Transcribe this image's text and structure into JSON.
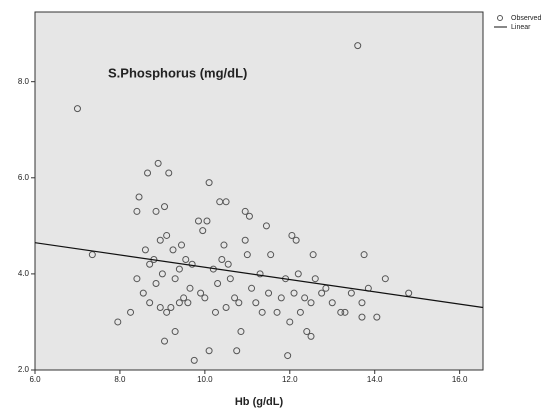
{
  "chart_data": {
    "type": "scatter",
    "annotation": "S.Phosphorus (mg/dL)",
    "x_label": "Hb (g/dL)",
    "xlim": [
      6,
      16.55
    ],
    "ylim": [
      2,
      9.45
    ],
    "xticks": [
      {
        "value": 6,
        "label": "6.0"
      },
      {
        "value": 8,
        "label": "8.0"
      },
      {
        "value": 10,
        "label": "10.0"
      },
      {
        "value": 12,
        "label": "12.0"
      },
      {
        "value": 14,
        "label": "14.0"
      },
      {
        "value": 16,
        "label": "16.0"
      }
    ],
    "yticks": [
      {
        "value": 2,
        "label": "2.0"
      },
      {
        "value": 4,
        "label": "4.0"
      },
      {
        "value": 6,
        "label": "6.0"
      },
      {
        "value": 8,
        "label": "8.0"
      }
    ],
    "series": [
      {
        "name": "Observed",
        "color": "#555555",
        "x": [
          7.0,
          13.6,
          7.35,
          7.95,
          8.25,
          8.4,
          8.4,
          8.45,
          8.55,
          8.6,
          8.65,
          8.7,
          8.7,
          8.8,
          8.85,
          8.85,
          8.9,
          8.95,
          8.95,
          9.0,
          9.05,
          9.05,
          9.1,
          9.1,
          9.15,
          9.2,
          9.25,
          9.3,
          9.3,
          9.4,
          9.4,
          9.45,
          9.5,
          9.55,
          9.6,
          9.65,
          9.7,
          9.75,
          9.85,
          9.9,
          9.95,
          10.0,
          10.05,
          10.1,
          10.1,
          10.2,
          10.25,
          10.3,
          10.35,
          10.4,
          10.45,
          10.5,
          10.5,
          10.55,
          10.6,
          10.7,
          10.75,
          10.8,
          10.85,
          10.95,
          10.95,
          11.0,
          11.05,
          11.1,
          11.2,
          11.3,
          11.35,
          11.45,
          11.5,
          11.55,
          11.7,
          11.8,
          11.9,
          11.95,
          12.0,
          12.05,
          12.1,
          12.15,
          12.2,
          12.25,
          12.35,
          12.4,
          12.5,
          12.5,
          12.55,
          12.6,
          12.75,
          12.85,
          13.0,
          13.2,
          13.3,
          13.45,
          13.7,
          13.7,
          13.75,
          13.85,
          14.05,
          14.25,
          14.8
        ],
        "values": [
          7.44,
          8.75,
          4.4,
          3.0,
          3.2,
          3.9,
          5.3,
          5.6,
          3.6,
          4.5,
          6.1,
          4.2,
          3.4,
          4.3,
          5.3,
          3.8,
          6.3,
          4.7,
          3.3,
          4.0,
          5.4,
          2.6,
          3.2,
          4.8,
          6.1,
          3.3,
          4.5,
          2.8,
          3.9,
          4.1,
          3.4,
          4.6,
          3.5,
          4.3,
          3.4,
          3.7,
          4.2,
          2.2,
          5.1,
          3.6,
          4.9,
          3.5,
          5.1,
          5.9,
          2.4,
          4.1,
          3.2,
          3.8,
          5.5,
          4.3,
          4.6,
          5.5,
          3.3,
          4.2,
          3.9,
          3.5,
          2.4,
          3.4,
          2.8,
          4.7,
          5.3,
          4.4,
          5.2,
          3.7,
          3.4,
          4.0,
          3.2,
          5.0,
          3.6,
          4.4,
          3.2,
          3.5,
          3.9,
          2.3,
          3.0,
          4.8,
          3.6,
          4.7,
          4.0,
          3.2,
          3.5,
          2.8,
          2.7,
          3.4,
          4.4,
          3.9,
          3.6,
          3.7,
          3.4,
          3.2,
          3.2,
          3.6,
          3.4,
          3.1,
          4.4,
          3.7,
          3.1,
          3.9,
          3.6
        ]
      },
      {
        "name": "Linear",
        "type": "line",
        "color": "#111111",
        "x": [
          6,
          16.55
        ],
        "values": [
          4.65,
          3.3
        ]
      }
    ]
  }
}
